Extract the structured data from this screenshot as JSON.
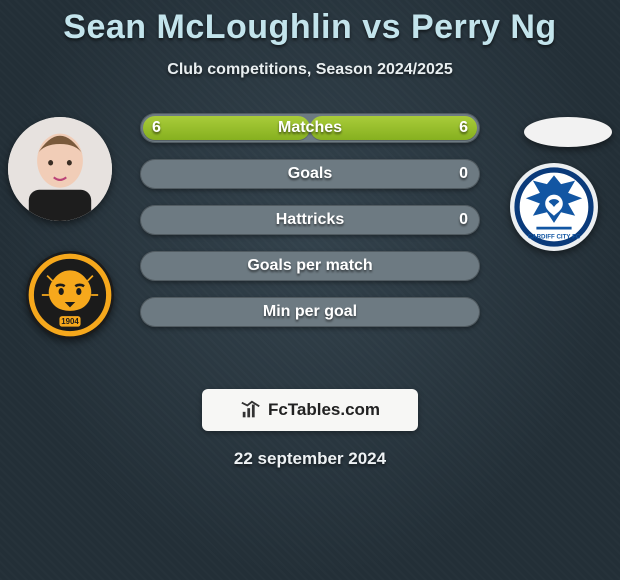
{
  "title": "Sean McLoughlin vs Perry Ng",
  "subtitle": "Club competitions, Season 2024/2025",
  "date_text": "22 september 2024",
  "watermark_text": "FcTables.com",
  "colors": {
    "title": "#c3e4ec",
    "bar_fill_start": "#a9cc3a",
    "bar_fill_end": "#86b01f",
    "bar_bg": "#6d7a82",
    "body_bg": "#2a3842"
  },
  "typography": {
    "title_fontsize": 34,
    "subtitle_fontsize": 16,
    "bar_label_fontsize": 16,
    "date_fontsize": 17
  },
  "stats": {
    "bars": [
      {
        "key": "matches",
        "label": "Matches",
        "left": "6",
        "right": "6",
        "left_pct": 50,
        "right_pct": 50
      },
      {
        "key": "goals",
        "label": "Goals",
        "left": "",
        "right": "0",
        "left_pct": 0,
        "right_pct": 0
      },
      {
        "key": "hattricks",
        "label": "Hattricks",
        "left": "",
        "right": "0",
        "left_pct": 0,
        "right_pct": 0
      },
      {
        "key": "gpm",
        "label": "Goals per match",
        "left": "",
        "right": "",
        "left_pct": 0,
        "right_pct": 0
      },
      {
        "key": "mpg",
        "label": "Min per goal",
        "left": "",
        "right": "",
        "left_pct": 0,
        "right_pct": 0
      }
    ]
  },
  "left_player": {
    "name": "Sean McLoughlin",
    "club": "Hull City",
    "club_founded": "1904"
  },
  "right_player": {
    "name": "Perry Ng",
    "club": "Cardiff City"
  }
}
